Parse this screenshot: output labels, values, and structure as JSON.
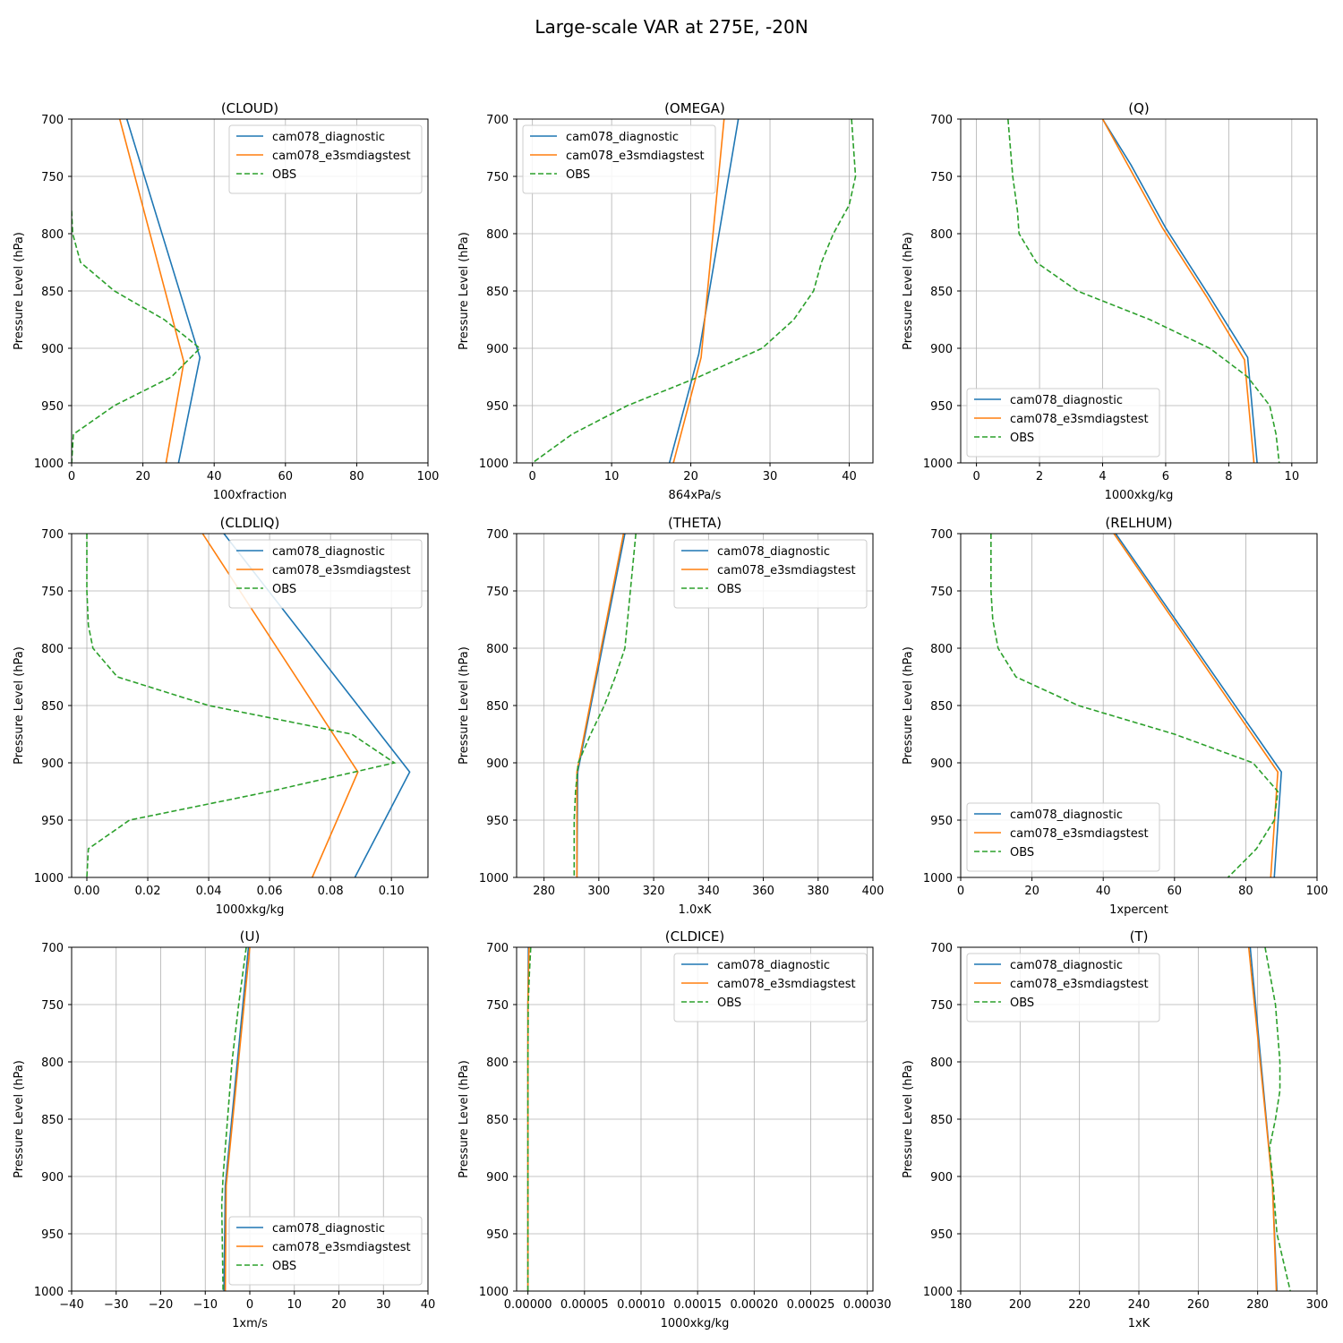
{
  "figure": {
    "title": "Large-scale VAR at 275E, -20N"
  },
  "chart_data": [
    {
      "type": "line",
      "title": "(CLOUD)",
      "xlabel": "100xfraction",
      "ylabel": "Pressure Level (hPa)",
      "xlim": [
        0,
        100
      ],
      "ylim": [
        1000,
        700
      ],
      "xticks": [
        0,
        20,
        40,
        60,
        80,
        100
      ],
      "xtick_labels": [
        "0",
        "20",
        "40",
        "60",
        "80",
        "100"
      ],
      "yticks": [
        700,
        750,
        800,
        850,
        900,
        950,
        1000
      ],
      "ytick_labels": [
        "700",
        "750",
        "800",
        "850",
        "900",
        "950",
        "1000"
      ],
      "grid": true,
      "legend": "top-right",
      "series": [
        {
          "name": "cam078_diagnostic",
          "color": "#1f77b4",
          "style": "solid",
          "x": [
            15.5,
            36,
            30
          ],
          "y": [
            700,
            908,
            1000
          ]
        },
        {
          "name": "cam078_e3smdiagstest",
          "color": "#ff7f0e",
          "style": "solid",
          "x": [
            13.5,
            31.5,
            26.5
          ],
          "y": [
            700,
            912,
            1000
          ]
        },
        {
          "name": "OBS",
          "color": "#2ca02c",
          "style": "dashed",
          "x": [
            0,
            0.3,
            2.5,
            12,
            26,
            36,
            28,
            12,
            0.5,
            0
          ],
          "y": [
            780,
            800,
            825,
            850,
            875,
            900,
            925,
            950,
            975,
            1000
          ]
        }
      ]
    },
    {
      "type": "line",
      "title": "(OMEGA)",
      "xlabel": "864xPa/s",
      "ylabel": "Pressure Level (hPa)",
      "xlim": [
        -2,
        43
      ],
      "ylim": [
        1000,
        700
      ],
      "xticks": [
        0,
        10,
        20,
        30,
        40
      ],
      "xtick_labels": [
        "0",
        "10",
        "20",
        "30",
        "40"
      ],
      "yticks": [
        700,
        750,
        800,
        850,
        900,
        950,
        1000
      ],
      "ytick_labels": [
        "700",
        "750",
        "800",
        "850",
        "900",
        "950",
        "1000"
      ],
      "grid": true,
      "legend": "top-left",
      "series": [
        {
          "name": "cam078_diagnostic",
          "color": "#1f77b4",
          "style": "solid",
          "x": [
            26,
            21,
            17.3
          ],
          "y": [
            700,
            905,
            1000
          ]
        },
        {
          "name": "cam078_e3smdiagstest",
          "color": "#ff7f0e",
          "style": "solid",
          "x": [
            24.2,
            21.3,
            17.8
          ],
          "y": [
            700,
            908,
            1000
          ]
        },
        {
          "name": "OBS",
          "color": "#2ca02c",
          "style": "dashed",
          "x": [
            40.3,
            40.8,
            40,
            38,
            36.5,
            35.5,
            33,
            29,
            21,
            12,
            5,
            0
          ],
          "y": [
            700,
            750,
            775,
            800,
            825,
            850,
            875,
            900,
            925,
            950,
            975,
            1000
          ]
        }
      ]
    },
    {
      "type": "line",
      "title": "(Q)",
      "xlabel": "1000xkg/kg",
      "ylabel": "Pressure Level (hPa)",
      "xlim": [
        -0.5,
        10.8
      ],
      "ylim": [
        1000,
        700
      ],
      "xticks": [
        0,
        2,
        4,
        6,
        8,
        10
      ],
      "xtick_labels": [
        "0",
        "2",
        "4",
        "6",
        "8",
        "10"
      ],
      "yticks": [
        700,
        750,
        800,
        850,
        900,
        950,
        1000
      ],
      "ytick_labels": [
        "700",
        "750",
        "800",
        "850",
        "900",
        "950",
        "1000"
      ],
      "grid": true,
      "legend": "bottom-left",
      "series": [
        {
          "name": "cam078_diagnostic",
          "color": "#1f77b4",
          "style": "solid",
          "x": [
            4,
            4.9,
            6,
            7.4,
            8.6,
            8.9
          ],
          "y": [
            700,
            740,
            795,
            855,
            908,
            1000
          ]
        },
        {
          "name": "cam078_e3smdiagstest",
          "color": "#ff7f0e",
          "style": "solid",
          "x": [
            4,
            4.8,
            5.9,
            7.3,
            8.5,
            8.8
          ],
          "y": [
            700,
            740,
            795,
            855,
            910,
            1000
          ]
        },
        {
          "name": "OBS",
          "color": "#2ca02c",
          "style": "dashed",
          "x": [
            1,
            1.15,
            1.3,
            1.35,
            1.9,
            3.2,
            5.5,
            7.4,
            8.6,
            9.3,
            9.5,
            9.6
          ],
          "y": [
            700,
            750,
            780,
            800,
            825,
            850,
            875,
            900,
            925,
            950,
            975,
            1000
          ]
        }
      ]
    },
    {
      "type": "line",
      "title": "(CLDLIQ)",
      "xlabel": "1000xkg/kg",
      "ylabel": "Pressure Level (hPa)",
      "xlim": [
        -0.005,
        0.112
      ],
      "ylim": [
        1000,
        700
      ],
      "xticks": [
        0,
        0.02,
        0.04,
        0.06,
        0.08,
        0.1
      ],
      "xtick_labels": [
        "0.00",
        "0.02",
        "0.04",
        "0.06",
        "0.08",
        "0.10"
      ],
      "yticks": [
        700,
        750,
        800,
        850,
        900,
        950,
        1000
      ],
      "ytick_labels": [
        "700",
        "750",
        "800",
        "850",
        "900",
        "950",
        "1000"
      ],
      "grid": true,
      "legend": "top-right",
      "series": [
        {
          "name": "cam078_diagnostic",
          "color": "#1f77b4",
          "style": "solid",
          "x": [
            0.045,
            0.106,
            0.088
          ],
          "y": [
            700,
            908,
            1000
          ]
        },
        {
          "name": "cam078_e3smdiagstest",
          "color": "#ff7f0e",
          "style": "solid",
          "x": [
            0.038,
            0.089,
            0.074
          ],
          "y": [
            700,
            908,
            1000
          ]
        },
        {
          "name": "OBS",
          "color": "#2ca02c",
          "style": "dashed",
          "x": [
            0,
            0,
            0.0005,
            0.002,
            0.01,
            0.04,
            0.087,
            0.101,
            0.06,
            0.014,
            0.0005,
            0
          ],
          "y": [
            700,
            750,
            780,
            800,
            825,
            850,
            875,
            900,
            925,
            950,
            975,
            1000
          ]
        }
      ]
    },
    {
      "type": "line",
      "title": "(THETA)",
      "xlabel": "1.0xK",
      "ylabel": "Pressure Level (hPa)",
      "xlim": [
        270,
        400
      ],
      "ylim": [
        1000,
        700
      ],
      "xticks": [
        280,
        300,
        320,
        340,
        360,
        380,
        400
      ],
      "xtick_labels": [
        "280",
        "300",
        "320",
        "340",
        "360",
        "380",
        "400"
      ],
      "yticks": [
        700,
        750,
        800,
        850,
        900,
        950,
        1000
      ],
      "ytick_labels": [
        "700",
        "750",
        "800",
        "850",
        "900",
        "950",
        "1000"
      ],
      "grid": true,
      "legend": "top-right",
      "series": [
        {
          "name": "cam078_diagnostic",
          "color": "#1f77b4",
          "style": "solid",
          "x": [
            309.5,
            292.3,
            292
          ],
          "y": [
            700,
            908,
            1000
          ]
        },
        {
          "name": "cam078_e3smdiagstest",
          "color": "#ff7f0e",
          "style": "solid",
          "x": [
            309,
            292,
            292
          ],
          "y": [
            700,
            908,
            1000
          ]
        },
        {
          "name": "OBS",
          "color": "#2ca02c",
          "style": "dashed",
          "x": [
            313.5,
            311.5,
            309.5,
            306,
            302,
            297,
            292.5,
            291.5,
            291,
            291
          ],
          "y": [
            700,
            750,
            800,
            825,
            850,
            875,
            900,
            925,
            950,
            1000
          ]
        }
      ]
    },
    {
      "type": "line",
      "title": "(RELHUM)",
      "xlabel": "1xpercent",
      "ylabel": "Pressure Level (hPa)",
      "xlim": [
        0,
        100
      ],
      "ylim": [
        1000,
        700
      ],
      "xticks": [
        0,
        20,
        40,
        60,
        80,
        100
      ],
      "xtick_labels": [
        "0",
        "20",
        "40",
        "60",
        "80",
        "100"
      ],
      "yticks": [
        700,
        750,
        800,
        850,
        900,
        950,
        1000
      ],
      "ytick_labels": [
        "700",
        "750",
        "800",
        "850",
        "900",
        "950",
        "1000"
      ],
      "grid": true,
      "legend": "bottom-left",
      "series": [
        {
          "name": "cam078_diagnostic",
          "color": "#1f77b4",
          "style": "solid",
          "x": [
            43.5,
            90,
            88
          ],
          "y": [
            700,
            908,
            1000
          ]
        },
        {
          "name": "cam078_e3smdiagstest",
          "color": "#ff7f0e",
          "style": "solid",
          "x": [
            43,
            89,
            87
          ],
          "y": [
            700,
            908,
            1000
          ]
        },
        {
          "name": "OBS",
          "color": "#2ca02c",
          "style": "dashed",
          "x": [
            8.5,
            8.5,
            9,
            10.5,
            15.5,
            33,
            60,
            82,
            89,
            88,
            83,
            75
          ],
          "y": [
            700,
            750,
            775,
            800,
            825,
            850,
            875,
            900,
            925,
            950,
            975,
            1000
          ]
        }
      ]
    },
    {
      "type": "line",
      "title": "(U)",
      "xlabel": "1xm/s",
      "ylabel": "Pressure Level (hPa)",
      "xlim": [
        -40,
        40
      ],
      "ylim": [
        1000,
        700
      ],
      "xticks": [
        -40,
        -30,
        -20,
        -10,
        0,
        10,
        20,
        30,
        40
      ],
      "xtick_labels": [
        "−40",
        "−30",
        "−20",
        "−10",
        "0",
        "10",
        "20",
        "30",
        "40"
      ],
      "yticks": [
        700,
        750,
        800,
        850,
        900,
        950,
        1000
      ],
      "ytick_labels": [
        "700",
        "750",
        "800",
        "850",
        "900",
        "950",
        "1000"
      ],
      "grid": true,
      "legend": "bottom-right",
      "series": [
        {
          "name": "cam078_diagnostic",
          "color": "#1f77b4",
          "style": "solid",
          "x": [
            -0.3,
            -5.5,
            -5.8
          ],
          "y": [
            700,
            908,
            1000
          ]
        },
        {
          "name": "cam078_e3smdiagstest",
          "color": "#ff7f0e",
          "style": "solid",
          "x": [
            0,
            -5.3,
            -5.5
          ],
          "y": [
            700,
            908,
            1000
          ]
        },
        {
          "name": "OBS",
          "color": "#2ca02c",
          "style": "dashed",
          "x": [
            -0.8,
            -2.5,
            -4,
            -5,
            -6,
            -6.3,
            -6.2,
            -6
          ],
          "y": [
            700,
            750,
            800,
            850,
            900,
            925,
            950,
            1000
          ]
        }
      ]
    },
    {
      "type": "line",
      "title": "(CLDICE)",
      "xlabel": "1000xkg/kg",
      "ylabel": "Pressure Level (hPa)",
      "xlim": [
        -1e-05,
        0.000305
      ],
      "ylim": [
        1000,
        700
      ],
      "xticks": [
        0,
        5e-05,
        0.0001,
        0.00015,
        0.0002,
        0.00025,
        0.0003
      ],
      "xtick_labels": [
        "0.00000",
        "0.00005",
        "0.00010",
        "0.00015",
        "0.00020",
        "0.00025",
        "0.00030"
      ],
      "yticks": [
        700,
        750,
        800,
        850,
        900,
        950,
        1000
      ],
      "ytick_labels": [
        "700",
        "750",
        "800",
        "850",
        "900",
        "950",
        "1000"
      ],
      "grid": true,
      "legend": "top-right",
      "series": [
        {
          "name": "cam078_diagnostic",
          "color": "#1f77b4",
          "style": "solid",
          "x": [
            5e-07,
            0,
            0
          ],
          "y": [
            700,
            750,
            1000
          ]
        },
        {
          "name": "cam078_e3smdiagstest",
          "color": "#ff7f0e",
          "style": "solid",
          "x": [
            1e-06,
            0,
            0
          ],
          "y": [
            700,
            750,
            1000
          ]
        },
        {
          "name": "OBS",
          "color": "#2ca02c",
          "style": "dashed",
          "x": [
            2.5e-06,
            1.2e-06,
            3e-07,
            0,
            0
          ],
          "y": [
            700,
            725,
            750,
            800,
            1000
          ]
        }
      ]
    },
    {
      "type": "line",
      "title": "(T)",
      "xlabel": "1xK",
      "ylabel": "Pressure Level (hPa)",
      "xlim": [
        180,
        300
      ],
      "ylim": [
        1000,
        700
      ],
      "xticks": [
        180,
        200,
        220,
        240,
        260,
        280,
        300
      ],
      "xtick_labels": [
        "180",
        "200",
        "220",
        "240",
        "260",
        "280",
        "300"
      ],
      "yticks": [
        700,
        750,
        800,
        850,
        900,
        950,
        1000
      ],
      "ytick_labels": [
        "700",
        "750",
        "800",
        "850",
        "900",
        "950",
        "1000"
      ],
      "grid": true,
      "legend": "top-left",
      "series": [
        {
          "name": "cam078_diagnostic",
          "color": "#1f77b4",
          "style": "solid",
          "x": [
            277.5,
            285,
            286.5
          ],
          "y": [
            700,
            908,
            1000
          ]
        },
        {
          "name": "cam078_e3smdiagstest",
          "color": "#ff7f0e",
          "style": "solid",
          "x": [
            277,
            285,
            286.3
          ],
          "y": [
            700,
            908,
            1000
          ]
        },
        {
          "name": "OBS",
          "color": "#2ca02c",
          "style": "dashed",
          "x": [
            282.5,
            286,
            287.5,
            287.5,
            286,
            284,
            285,
            286.5,
            291
          ],
          "y": [
            700,
            750,
            800,
            825,
            850,
            875,
            900,
            950,
            1000
          ]
        }
      ]
    }
  ]
}
